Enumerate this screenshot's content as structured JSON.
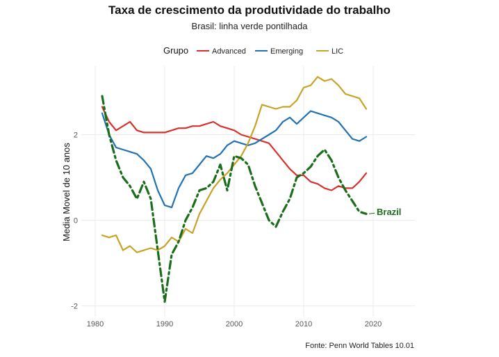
{
  "chart_data": {
    "type": "line",
    "title": "Taxa de crescimento da produtividade do trabalho",
    "subtitle": "Brasil: linha verde pontilhada",
    "xlabel": "",
    "ylabel": "Media Movel de 10 anos",
    "caption": "Fonte: Penn World Tables 10.01",
    "xlim": [
      1978,
      2026
    ],
    "ylim": [
      -2.25,
      3.6
    ],
    "x_ticks": [
      "1980",
      "1990",
      "2000",
      "2010",
      "2020"
    ],
    "x_tick_values": [
      1980,
      1990,
      2000,
      2010,
      2020
    ],
    "y_ticks": [
      "-2",
      "0",
      "2"
    ],
    "y_tick_values": [
      -2,
      0,
      2
    ],
    "grid": true,
    "legend": {
      "title": "Grupo",
      "position": "top",
      "entries": [
        "Advanced",
        "Emerging",
        "LIC"
      ]
    },
    "colors": {
      "Advanced": "#d7312e",
      "Emerging": "#2271b2",
      "LIC": "#c9a227",
      "Brazil": "#1a6e1a"
    },
    "x": [
      1981,
      1982,
      1983,
      1984,
      1985,
      1986,
      1987,
      1988,
      1989,
      1990,
      1991,
      1992,
      1993,
      1994,
      1995,
      1996,
      1997,
      1998,
      1999,
      2000,
      2001,
      2002,
      2003,
      2004,
      2005,
      2006,
      2007,
      2008,
      2009,
      2010,
      2011,
      2012,
      2013,
      2014,
      2015,
      2016,
      2017,
      2018,
      2019
    ],
    "series": [
      {
        "name": "Advanced",
        "values": [
          2.65,
          2.3,
          2.1,
          2.2,
          2.3,
          2.1,
          2.05,
          2.05,
          2.05,
          2.05,
          2.1,
          2.15,
          2.15,
          2.2,
          2.2,
          2.25,
          2.3,
          2.2,
          2.15,
          2.1,
          2.0,
          1.95,
          1.9,
          1.85,
          1.8,
          1.6,
          1.4,
          1.2,
          1.05,
          1.05,
          0.9,
          0.85,
          0.75,
          0.7,
          0.8,
          0.75,
          0.75,
          0.9,
          1.1
        ]
      },
      {
        "name": "Emerging",
        "values": [
          2.5,
          2.0,
          1.7,
          1.65,
          1.6,
          1.55,
          1.4,
          1.2,
          0.7,
          0.35,
          0.3,
          0.75,
          1.05,
          1.1,
          1.3,
          1.5,
          1.45,
          1.55,
          1.75,
          1.85,
          1.8,
          1.75,
          1.8,
          1.9,
          2.0,
          2.1,
          2.3,
          2.4,
          2.25,
          2.4,
          2.55,
          2.5,
          2.45,
          2.4,
          2.3,
          2.1,
          1.9,
          1.85,
          1.95
        ]
      },
      {
        "name": "LIC",
        "values": [
          -0.35,
          -0.4,
          -0.35,
          -0.7,
          -0.6,
          -0.75,
          -0.7,
          -0.65,
          -0.7,
          -0.6,
          -0.4,
          -0.5,
          -0.2,
          -0.3,
          0.15,
          0.45,
          0.75,
          0.95,
          1.1,
          1.3,
          1.5,
          1.8,
          2.2,
          2.7,
          2.65,
          2.6,
          2.65,
          2.65,
          2.8,
          3.1,
          3.15,
          3.35,
          3.25,
          3.3,
          3.15,
          2.95,
          2.9,
          2.85,
          2.6
        ]
      },
      {
        "name": "Brazil",
        "values": [
          2.9,
          2.0,
          1.4,
          1.0,
          0.8,
          0.5,
          0.9,
          0.5,
          -0.7,
          -1.9,
          -0.8,
          -0.5,
          0.0,
          0.3,
          0.7,
          0.75,
          0.9,
          1.3,
          0.7,
          1.5,
          1.45,
          1.3,
          0.8,
          0.4,
          0.0,
          -0.15,
          0.2,
          0.5,
          1.0,
          1.1,
          1.25,
          1.5,
          1.65,
          1.4,
          1.0,
          0.7,
          0.45,
          0.2,
          0.15
        ]
      }
    ],
    "annotations": [
      {
        "text": "Brazil",
        "x": 2020.5,
        "y": 0.2,
        "series": "Brazil"
      }
    ]
  }
}
